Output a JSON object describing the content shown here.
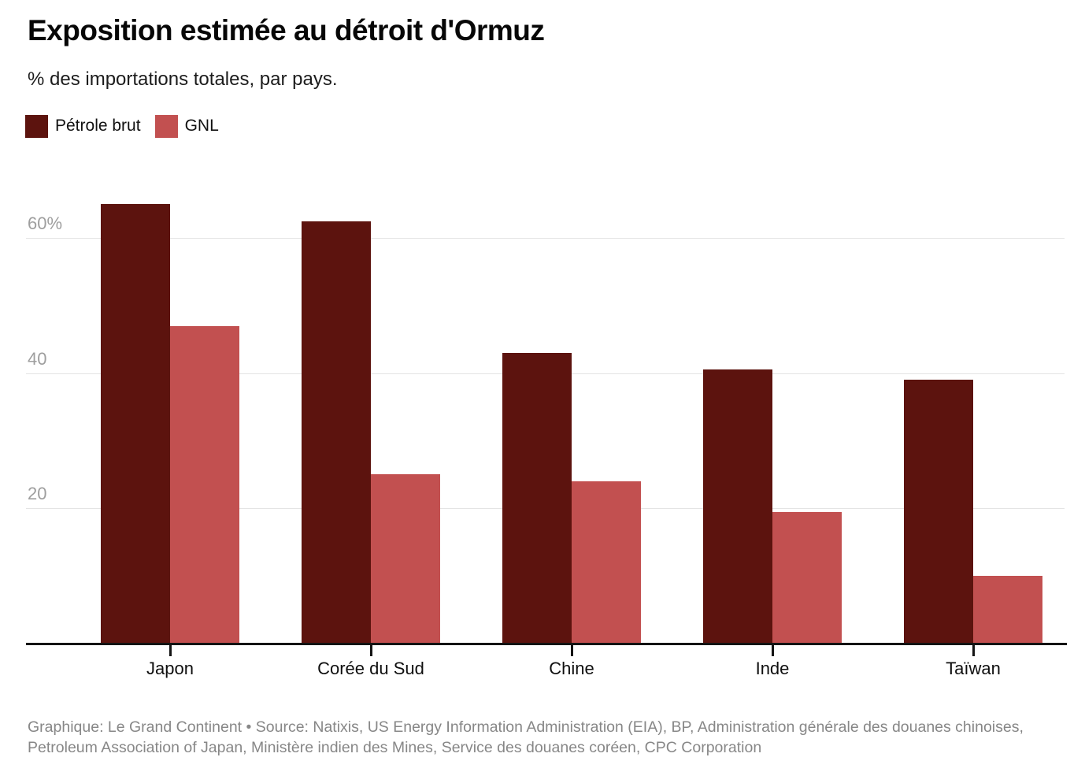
{
  "header": {
    "title": "Exposition estimée au détroit d'Ormuz",
    "subtitle": "% des importations totales, par pays."
  },
  "footer": {
    "text": "Graphique: Le Grand Continent • Source: Natixis, US Energy Information Administration (EIA), BP, Administration générale des douanes chinoises, Petroleum Association of Japan, Ministère indien des Mines, Service des douanes coréen, CPC Corporation"
  },
  "colors": {
    "crude_oil": "#5c130e",
    "lng": "#c25050",
    "gridline": "#e4e4e4",
    "axis_text": "#9e9e9e",
    "baseline": "#141414"
  },
  "chart_data": {
    "type": "bar",
    "title": "Exposition estimée au détroit d'Ormuz",
    "subtitle": "% des importations totales, par pays.",
    "categories": [
      "Japon",
      "Corée du Sud",
      "Chine",
      "Inde",
      "Taïwan"
    ],
    "series": [
      {
        "name": "Pétrole brut",
        "color": "#5c130e",
        "values": [
          65,
          62.5,
          43,
          40.5,
          39
        ]
      },
      {
        "name": "GNL",
        "color": "#c25050",
        "values": [
          47,
          25,
          24,
          19.5,
          10
        ]
      }
    ],
    "ylabel": "% des importations totales",
    "ylim": [
      0,
      68
    ],
    "yticks": [
      {
        "value": 20,
        "label": "20"
      },
      {
        "value": 40,
        "label": "40"
      },
      {
        "value": 60,
        "label": "60%"
      }
    ],
    "grid": true,
    "legend_position": "top-left"
  }
}
